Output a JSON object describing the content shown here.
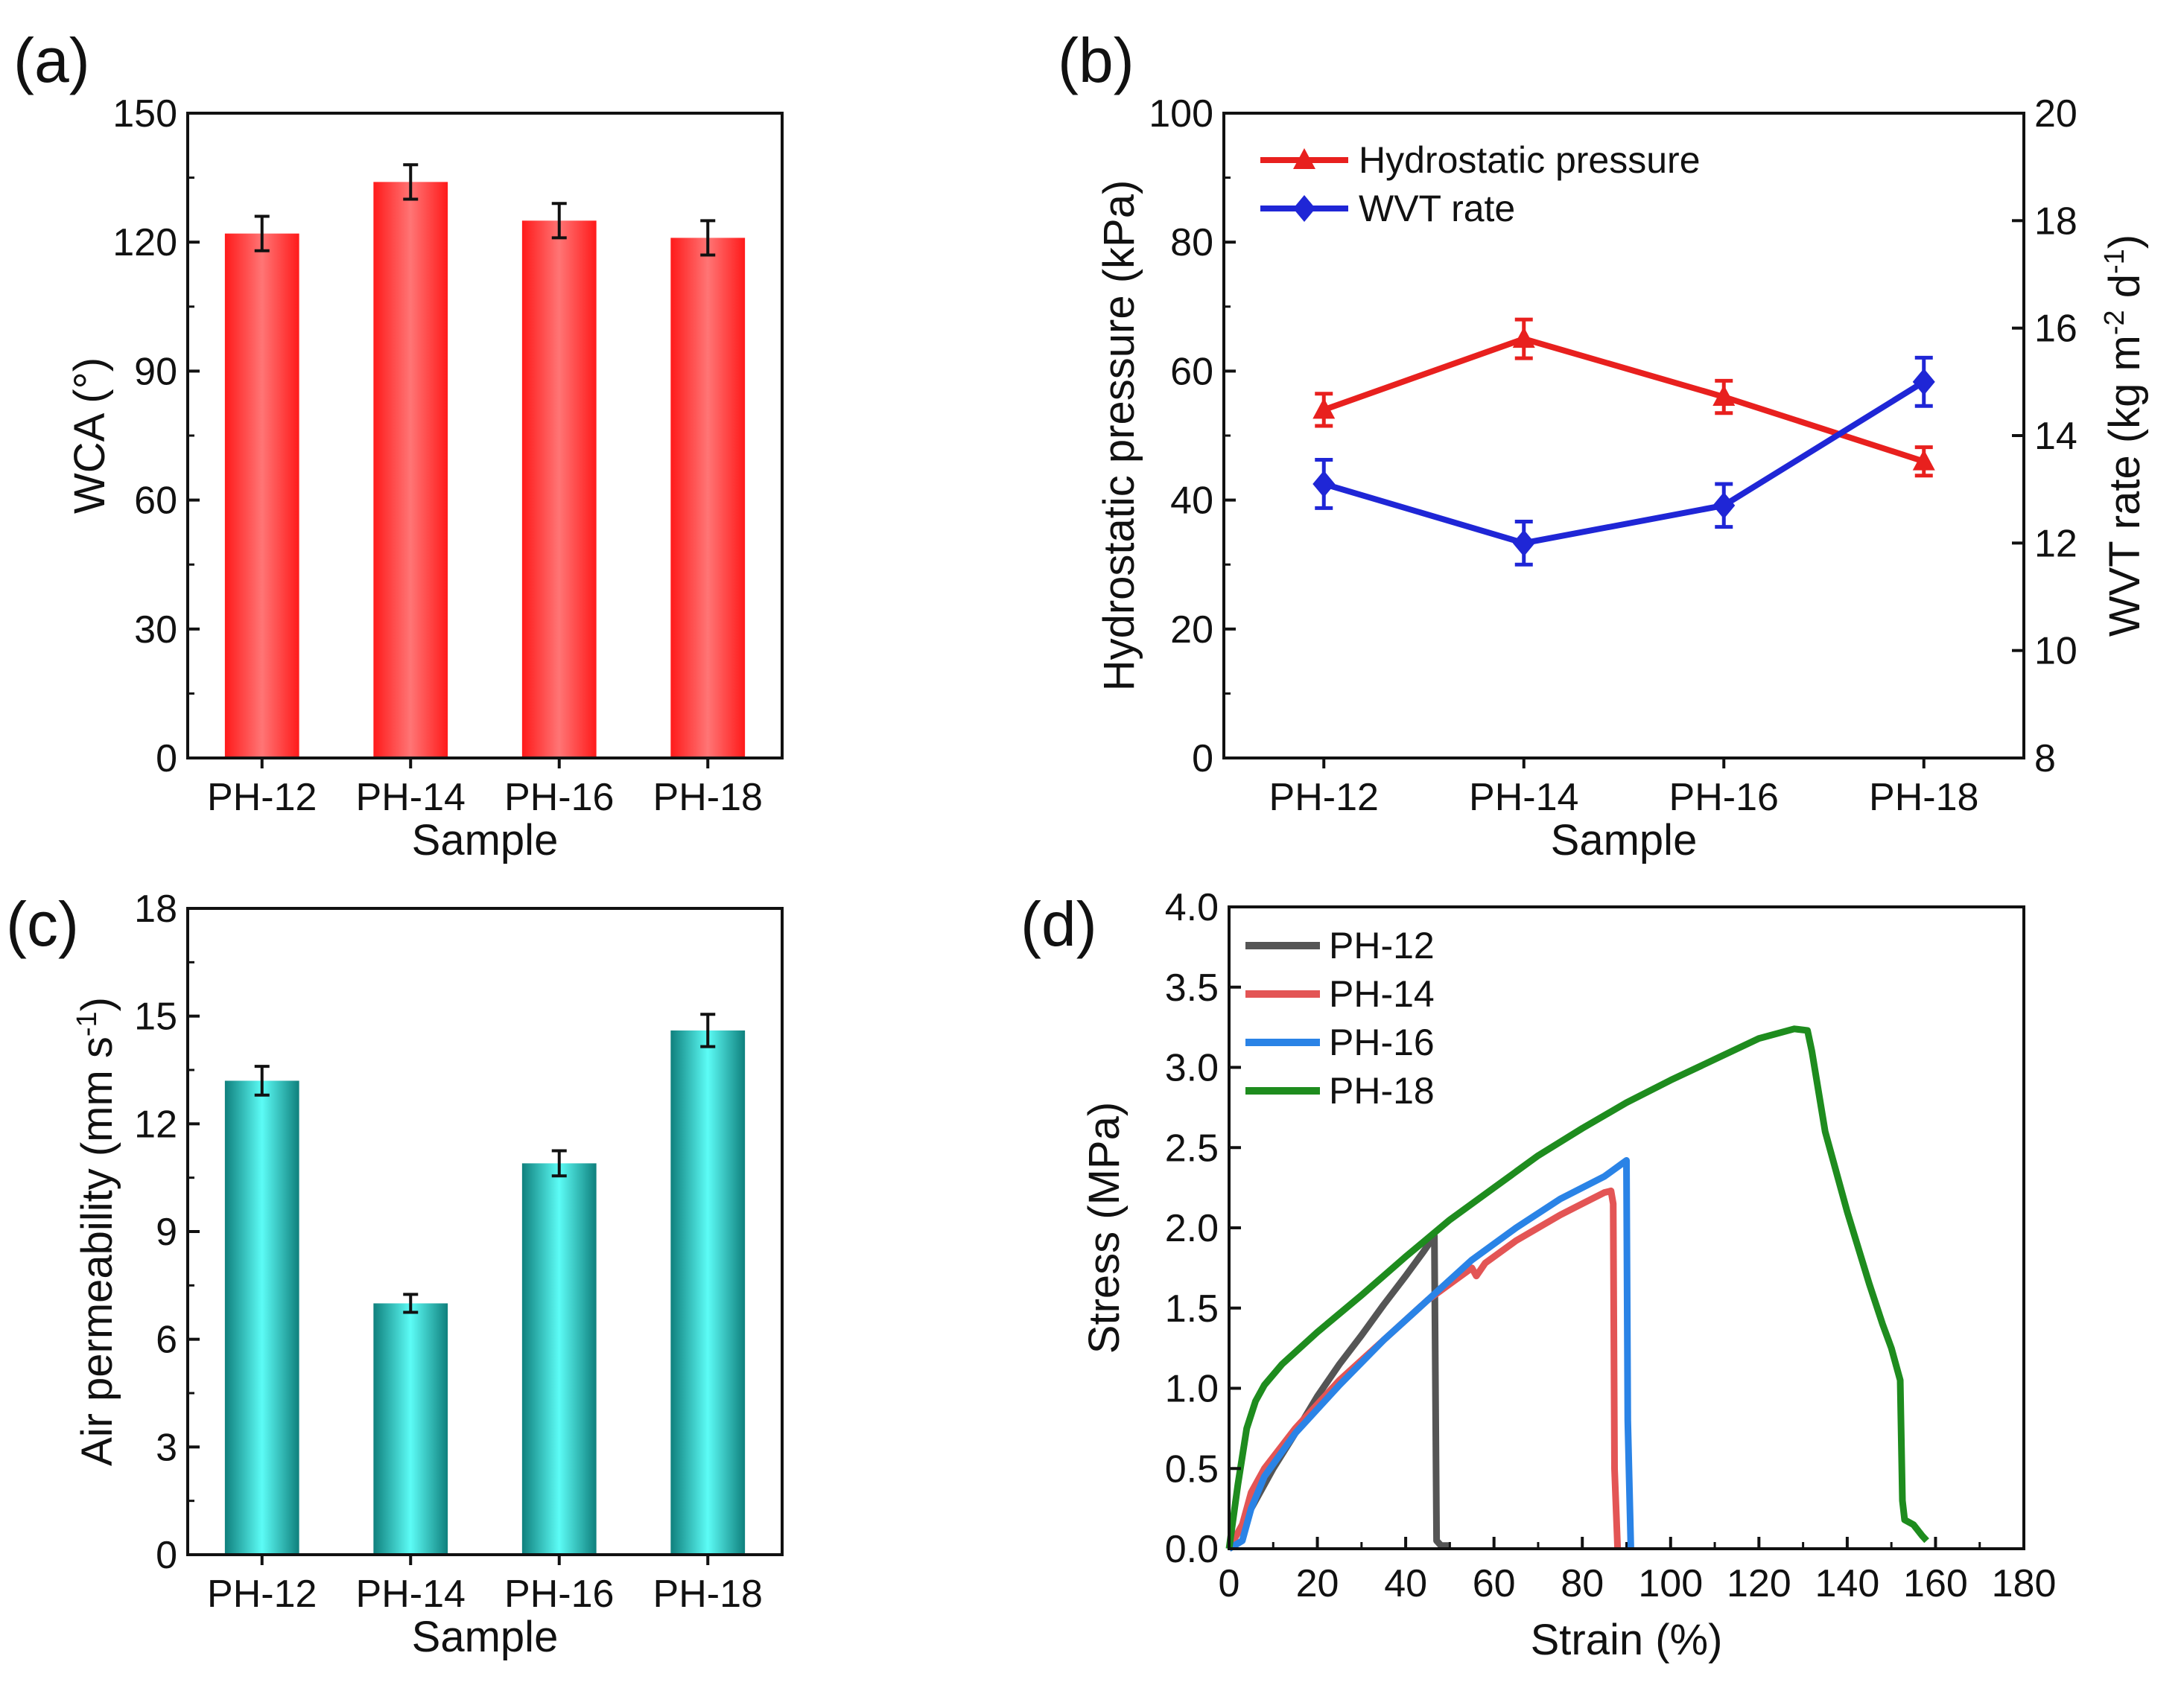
{
  "chart_data": [
    {
      "panel": "(a)",
      "type": "bar",
      "categories": [
        "PH-12",
        "PH-14",
        "PH-16",
        "PH-18"
      ],
      "values": [
        122,
        134,
        125,
        121
      ],
      "errors": [
        4,
        4,
        4,
        4
      ],
      "xlabel": "Sample",
      "ylabel": "WCA (°)",
      "ylim": [
        0,
        150
      ],
      "yticks": [
        "0",
        "30",
        "60",
        "90",
        "120",
        "150"
      ],
      "bar_color": "#ff2b2b"
    },
    {
      "panel": "(b)",
      "type": "line",
      "categories": [
        "PH-12",
        "PH-14",
        "PH-16",
        "PH-18"
      ],
      "xlabel": "Sample",
      "ylabel": "Hydrostatic pressure (kPa)",
      "ylim": [
        0,
        100
      ],
      "yticks": [
        "0",
        "20",
        "40",
        "60",
        "80",
        "100"
      ],
      "ylabel_right_main": "WVT rate (kg m",
      "ylabel_right_exp1": "-2",
      "ylabel_right_mid": " d",
      "ylabel_right_exp2": "-1",
      "ylabel_right_end": ")",
      "ylim_right": [
        8,
        20
      ],
      "yticks_right": [
        "8",
        "10",
        "12",
        "14",
        "16",
        "18",
        "20"
      ],
      "series": [
        {
          "name": "Hydrostatic pressure",
          "axis": "left",
          "marker": "triangle",
          "color": "#e8201e",
          "values": [
            54,
            65,
            56,
            46
          ],
          "errors": [
            2.5,
            3,
            2.5,
            2.2
          ]
        },
        {
          "name": "WVT rate",
          "axis": "right",
          "marker": "diamond",
          "color": "#1f26d6",
          "values": [
            13.1,
            12.0,
            12.7,
            15.0
          ],
          "errors": [
            0.45,
            0.4,
            0.4,
            0.45
          ]
        }
      ]
    },
    {
      "panel": "(c)",
      "type": "bar",
      "categories": [
        "PH-12",
        "PH-14",
        "PH-16",
        "PH-18"
      ],
      "values": [
        13.2,
        7.0,
        10.9,
        14.6
      ],
      "errors": [
        0.4,
        0.25,
        0.35,
        0.45
      ],
      "xlabel": "Sample",
      "ylabel_main": "Air permeability (mm s",
      "ylabel_exp": "-1",
      "ylabel_end": ")",
      "ylim": [
        0,
        18
      ],
      "yticks": [
        "0",
        "3",
        "6",
        "9",
        "12",
        "15",
        "18"
      ],
      "bar_color": "#35e3dc"
    },
    {
      "panel": "(d)",
      "type": "line",
      "xlabel": "Strain (%)",
      "ylabel": "Stress (MPa)",
      "xlim": [
        0,
        180
      ],
      "ylim": [
        0,
        4
      ],
      "xticks": [
        "0",
        "20",
        "40",
        "60",
        "80",
        "100",
        "120",
        "140",
        "160",
        "180"
      ],
      "yticks": [
        "0.0",
        "0.5",
        "1.0",
        "1.5",
        "2.0",
        "2.5",
        "3.0",
        "3.5",
        "4.0"
      ],
      "series": [
        {
          "name": "PH-12",
          "color": "#555555",
          "x": [
            0,
            1,
            3,
            5,
            10,
            15,
            20,
            25,
            30,
            35,
            40,
            44,
            46,
            46.5,
            46.8,
            47,
            48,
            50
          ],
          "y": [
            0,
            0.05,
            0.15,
            0.25,
            0.5,
            0.72,
            0.95,
            1.15,
            1.33,
            1.52,
            1.7,
            1.85,
            1.93,
            1.95,
            0.8,
            0.05,
            0.02,
            0.02
          ]
        },
        {
          "name": "PH-14",
          "color": "#e35555",
          "x": [
            0,
            3,
            5,
            8,
            15,
            25,
            35,
            45,
            55,
            56,
            58,
            65,
            75,
            80,
            85,
            86.5,
            87,
            87.3,
            88
          ],
          "y": [
            0,
            0.15,
            0.35,
            0.5,
            0.75,
            1.05,
            1.3,
            1.55,
            1.75,
            1.7,
            1.78,
            1.92,
            2.08,
            2.15,
            2.22,
            2.23,
            2.15,
            0.5,
            0.0
          ]
        },
        {
          "name": "PH-16",
          "color": "#2a83e6",
          "x": [
            0,
            3,
            5,
            8,
            15,
            25,
            35,
            45,
            55,
            65,
            75,
            85,
            89,
            90,
            90.3,
            91
          ],
          "y": [
            0,
            0.05,
            0.25,
            0.45,
            0.72,
            1.02,
            1.3,
            1.55,
            1.8,
            2.0,
            2.18,
            2.32,
            2.4,
            2.42,
            0.8,
            0.0
          ]
        },
        {
          "name": "PH-18",
          "color": "#1e8c1e",
          "x": [
            0,
            2,
            4,
            6,
            8,
            12,
            20,
            30,
            40,
            50,
            60,
            70,
            80,
            90,
            100,
            110,
            120,
            128,
            131,
            132,
            135,
            140,
            145,
            148,
            150,
            152,
            152.5,
            153,
            155,
            157,
            158
          ],
          "y": [
            0,
            0.4,
            0.75,
            0.92,
            1.02,
            1.15,
            1.35,
            1.58,
            1.82,
            2.05,
            2.25,
            2.45,
            2.62,
            2.78,
            2.92,
            3.05,
            3.18,
            3.24,
            3.23,
            3.1,
            2.6,
            2.1,
            1.65,
            1.4,
            1.25,
            1.05,
            0.3,
            0.18,
            0.15,
            0.08,
            0.05
          ]
        }
      ]
    }
  ]
}
